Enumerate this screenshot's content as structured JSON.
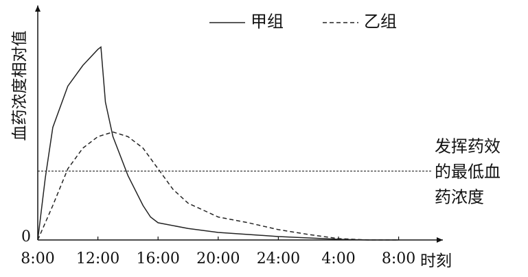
{
  "chart_data": {
    "type": "line",
    "y_label": "血药浓度相对值",
    "x_label": "时刻",
    "xlim": [
      0,
      27
    ],
    "xticks": [
      {
        "value": 0,
        "label": "8:00"
      },
      {
        "value": 4,
        "label": "12:00"
      },
      {
        "value": 8,
        "label": "16:00"
      },
      {
        "value": 12,
        "label": "20:00"
      },
      {
        "value": 16,
        "label": "24:00"
      },
      {
        "value": 20,
        "label": "4:00"
      },
      {
        "value": 24,
        "label": "8:00"
      }
    ],
    "ylim": [
      0,
      100
    ],
    "yticks": [
      0
    ],
    "series": [
      {
        "name": "甲组",
        "color": "#222",
        "dashed": false,
        "x": [
          0,
          0.5,
          1,
          2,
          3,
          4,
          4.2,
          4.5,
          5,
          6,
          7,
          7.5,
          8,
          10,
          12,
          16,
          20,
          22,
          24
        ],
        "values": [
          0,
          27,
          49,
          67,
          76,
          83,
          84,
          60,
          45,
          28,
          15,
          10,
          7.5,
          5,
          3.3,
          1.5,
          0.3,
          0,
          0
        ]
      },
      {
        "name": "乙组",
        "color": "#222",
        "dashed": true,
        "x": [
          0,
          1,
          2,
          3,
          4,
          5,
          6,
          7,
          8,
          9,
          10,
          12,
          14,
          16,
          18,
          20,
          22,
          24
        ],
        "values": [
          0,
          15,
          31,
          40,
          45,
          47,
          45,
          40,
          31,
          22,
          16,
          10,
          7.5,
          4.5,
          2.4,
          0.6,
          0,
          0
        ]
      }
    ],
    "threshold": {
      "value": 30,
      "label_lines": [
        "发挥药效",
        "的最低血",
        "药浓度"
      ]
    }
  }
}
